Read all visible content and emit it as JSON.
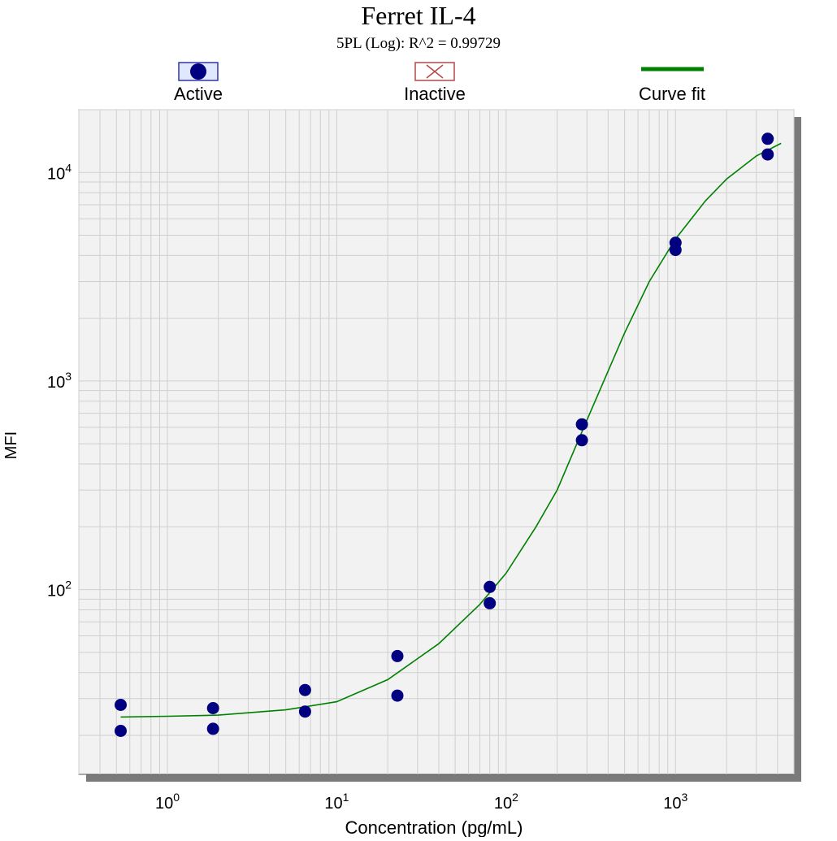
{
  "chart_data": {
    "type": "scatter",
    "title": "Ferret IL-4",
    "subtitle": "5PL (Log): R^2 = 0.99729",
    "xlabel": "Concentration (pg/mL)",
    "ylabel": "MFI",
    "xscale": "log",
    "yscale": "log",
    "xlim": [
      0.3,
      5000
    ],
    "ylim": [
      13,
      20000
    ],
    "grid": true,
    "legend_position": "top",
    "legend": {
      "active": "Active",
      "inactive": "Inactive",
      "curve_fit": "Curve fit"
    },
    "x_ticks": [
      {
        "base": "10",
        "exp": "0",
        "value": 1
      },
      {
        "base": "10",
        "exp": "1",
        "value": 10
      },
      {
        "base": "10",
        "exp": "2",
        "value": 100
      },
      {
        "base": "10",
        "exp": "3",
        "value": 1000
      }
    ],
    "y_ticks": [
      {
        "base": "10",
        "exp": "2",
        "value": 100
      },
      {
        "base": "10",
        "exp": "3",
        "value": 1000
      },
      {
        "base": "10",
        "exp": "4",
        "value": 10000
      }
    ],
    "series": [
      {
        "name": "Active",
        "points": [
          [
            0.53,
            28
          ],
          [
            0.53,
            21
          ],
          [
            1.86,
            27
          ],
          [
            1.86,
            21.5
          ],
          [
            6.5,
            33
          ],
          [
            6.5,
            26
          ],
          [
            22.8,
            48
          ],
          [
            22.8,
            31
          ],
          [
            80,
            103
          ],
          [
            80,
            86
          ],
          [
            280,
            620
          ],
          [
            280,
            520
          ],
          [
            1000,
            4600
          ],
          [
            1000,
            4250
          ],
          [
            3500,
            14500
          ],
          [
            3500,
            12200
          ]
        ]
      }
    ],
    "curve_fit": [
      [
        0.53,
        24.5
      ],
      [
        1,
        24.7
      ],
      [
        2,
        25.0
      ],
      [
        5,
        26.5
      ],
      [
        10,
        29.0
      ],
      [
        20,
        37
      ],
      [
        40,
        55
      ],
      [
        70,
        85
      ],
      [
        100,
        120
      ],
      [
        150,
        200
      ],
      [
        200,
        300
      ],
      [
        300,
        650
      ],
      [
        500,
        1700
      ],
      [
        700,
        3000
      ],
      [
        1000,
        4800
      ],
      [
        1500,
        7300
      ],
      [
        2000,
        9300
      ],
      [
        3000,
        12000
      ],
      [
        4200,
        13800
      ]
    ],
    "colors": {
      "marker": "#000080",
      "curve": "#008000",
      "plot_bg": "#f2f2f2",
      "grid": "#cfcfcf",
      "inactive": "#b04a4a"
    }
  }
}
